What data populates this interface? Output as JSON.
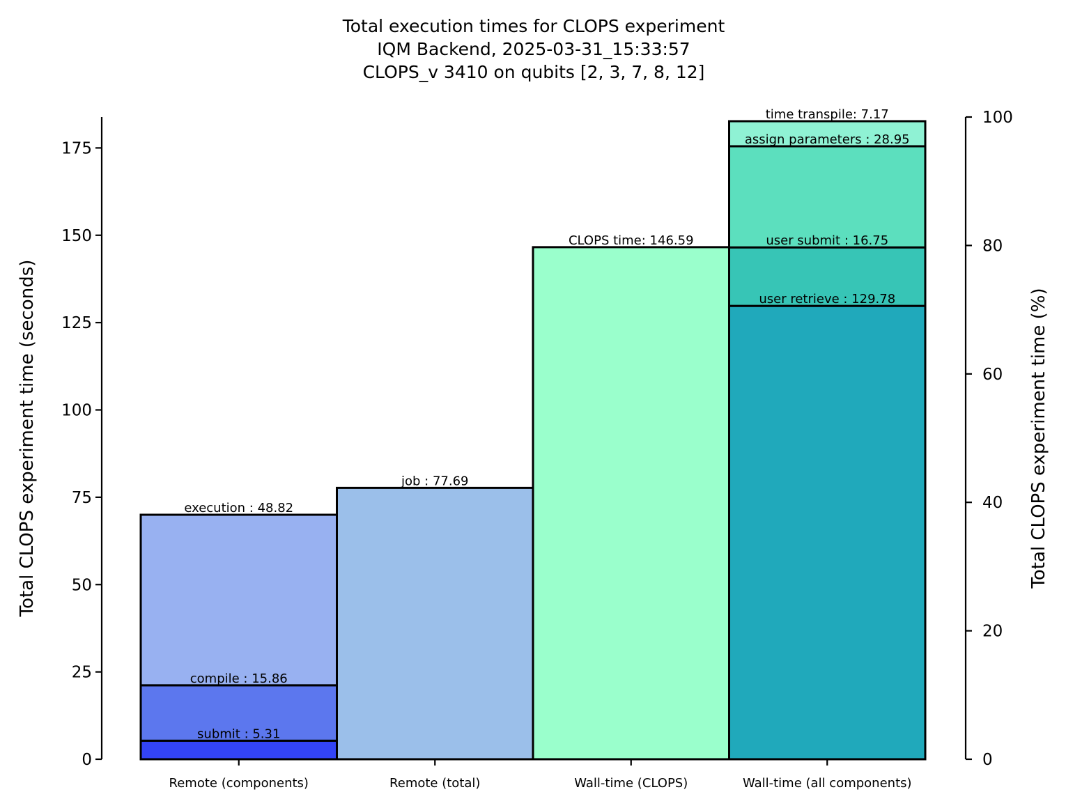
{
  "chart_data": {
    "type": "bar",
    "title_lines": [
      "Total execution times for CLOPS experiment",
      "IQM Backend, 2025-03-31_15:33:57",
      "CLOPS_v 3410 on qubits [2, 3, 7, 8, 12]"
    ],
    "ylabel": "Total CLOPS experiment time (seconds)",
    "ylabel_right": "Total CLOPS experiment time (%)",
    "ylim": [
      0,
      183.85
    ],
    "yticks": [
      0,
      25,
      50,
      75,
      100,
      125,
      150,
      175
    ],
    "ylim_right": [
      0,
      100
    ],
    "yticks_right": [
      0,
      20,
      40,
      60,
      80,
      100
    ],
    "categories": [
      "Remote (components)",
      "Remote (total)",
      "Wall-time (CLOPS)",
      "Wall-time (all components)"
    ],
    "stacks": [
      {
        "category": "Remote (components)",
        "segments": [
          {
            "label": "submit : 5.31",
            "value": 5.31,
            "color": "#3344f5"
          },
          {
            "label": "compile : 15.86",
            "value": 15.86,
            "color": "#5c77ee"
          },
          {
            "label": "execution : 48.82",
            "value": 48.82,
            "color": "#98b1f1"
          }
        ]
      },
      {
        "category": "Remote (total)",
        "segments": [
          {
            "label": "job : 77.69",
            "value": 77.69,
            "color": "#9bbfea"
          }
        ]
      },
      {
        "category": "Wall-time (CLOPS)",
        "segments": [
          {
            "label": "CLOPS time: 146.59",
            "value": 146.59,
            "color": "#9affcc"
          }
        ]
      },
      {
        "category": "Wall-time (all components)",
        "segments": [
          {
            "label": "user retrieve : 129.78",
            "value": 129.78,
            "color": "#20a9bb"
          },
          {
            "label": "user submit : 16.75",
            "value": 16.75,
            "color": "#37c5b6"
          },
          {
            "label": "assign parameters : 28.95",
            "value": 28.95,
            "color": "#5cdfbe"
          },
          {
            "label": "time transpile: 7.17",
            "value": 7.17,
            "color": "#8ff2d4"
          }
        ]
      }
    ]
  }
}
